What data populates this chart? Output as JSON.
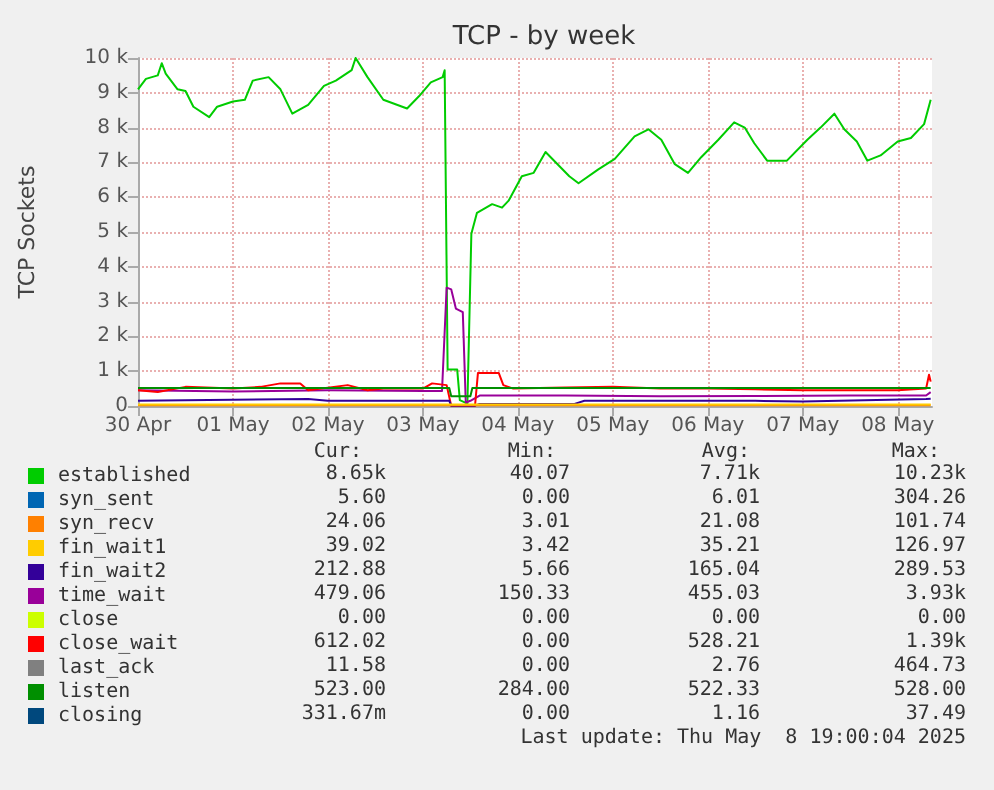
{
  "chart_data": {
    "type": "line",
    "title": "TCP - by week",
    "ylabel": "TCP Sockets",
    "legend": "bottom",
    "grid": true,
    "marker": "none",
    "line_style": "solid",
    "xlim": [
      "2025-04-30T00:00",
      "2025-05-08T08:40"
    ],
    "xticks": [
      {
        "value": "2025-04-30T00:00",
        "label": "30 Apr"
      },
      {
        "value": "2025-05-01T00:00",
        "label": "01 May"
      },
      {
        "value": "2025-05-02T00:00",
        "label": "02 May"
      },
      {
        "value": "2025-05-03T00:00",
        "label": "03 May"
      },
      {
        "value": "2025-05-04T00:00",
        "label": "04 May"
      },
      {
        "value": "2025-05-05T00:00",
        "label": "05 May"
      },
      {
        "value": "2025-05-06T00:00",
        "label": "06 May"
      },
      {
        "value": "2025-05-07T00:00",
        "label": "07 May"
      },
      {
        "value": "2025-05-08T00:00",
        "label": "08 May"
      }
    ],
    "ylim": [
      0,
      10000
    ],
    "yticks": [
      0,
      {
        "value": 1000,
        "label": "1 k"
      },
      {
        "value": 2000,
        "label": "2 k"
      },
      {
        "value": 3000,
        "label": "3 k"
      },
      {
        "value": 4000,
        "label": "4 k"
      },
      {
        "value": 5000,
        "label": "5 k"
      },
      {
        "value": 6000,
        "label": "6 k"
      },
      {
        "value": 7000,
        "label": "7 k"
      },
      {
        "value": 8000,
        "label": "8 k"
      },
      {
        "value": 9000,
        "label": "9 k"
      },
      {
        "value": 10000,
        "label": "10 k"
      }
    ],
    "series": [
      {
        "name": "established",
        "color": "#00cc00",
        "x": [
          "2025-04-30T00:00",
          "2025-04-30T02:00",
          "2025-04-30T05:00",
          "2025-04-30T06:00",
          "2025-04-30T07:00",
          "2025-04-30T10:00",
          "2025-04-30T12:00",
          "2025-04-30T14:00",
          "2025-04-30T18:00",
          "2025-04-30T20:00",
          "2025-05-01T00:00",
          "2025-05-01T03:00",
          "2025-05-01T05:00",
          "2025-05-01T09:00",
          "2025-05-01T12:00",
          "2025-05-01T15:00",
          "2025-05-01T19:00",
          "2025-05-01T23:00",
          "2025-05-02T02:00",
          "2025-05-02T06:00",
          "2025-05-02T07:00",
          "2025-05-02T10:00",
          "2025-05-02T14:00",
          "2025-05-02T20:00",
          "2025-05-02T23:00",
          "2025-05-03T02:00",
          "2025-05-03T05:00",
          "2025-05-03T05:30",
          "2025-05-03T06:15",
          "2025-05-03T08:40",
          "2025-05-03T09:20",
          "2025-05-03T11:15",
          "2025-05-03T12:15",
          "2025-05-03T13:40",
          "2025-05-03T17:30",
          "2025-05-03T20:00",
          "2025-05-03T21:40",
          "2025-05-04T01:00",
          "2025-05-04T04:00",
          "2025-05-04T07:00",
          "2025-05-04T13:00",
          "2025-05-04T15:20",
          "2025-05-04T20:20",
          "2025-05-05T00:30",
          "2025-05-05T05:30",
          "2025-05-05T09:00",
          "2025-05-05T12:15",
          "2025-05-05T15:40",
          "2025-05-05T19:00",
          "2025-05-05T22:20",
          "2025-05-06T02:40",
          "2025-05-06T06:40",
          "2025-05-06T09:20",
          "2025-05-06T11:45",
          "2025-05-06T15:00",
          "2025-05-06T20:00",
          "2025-05-07T01:10",
          "2025-05-07T04:30",
          "2025-05-07T08:00",
          "2025-05-07T10:30",
          "2025-05-07T13:40",
          "2025-05-07T16:20",
          "2025-05-07T19:40",
          "2025-05-08T00:00",
          "2025-05-08T03:20",
          "2025-05-08T06:40",
          "2025-05-08T08:20"
        ],
        "values": [
          9100,
          9400,
          9500,
          9850,
          9550,
          9100,
          9050,
          8600,
          8300,
          8600,
          8750,
          8800,
          9350,
          9450,
          9100,
          8400,
          8650,
          9200,
          9350,
          9650,
          10000,
          9450,
          8800,
          8550,
          8900,
          9300,
          9450,
          9650,
          1050,
          1050,
          170,
          70,
          4950,
          5550,
          5800,
          5700,
          5900,
          6600,
          6700,
          7300,
          6600,
          6400,
          6800,
          7100,
          7750,
          7950,
          7650,
          6950,
          6700,
          7150,
          7650,
          8150,
          8000,
          7550,
          7050,
          7050,
          7650,
          8000,
          8400,
          7950,
          7600,
          7050,
          7200,
          7600,
          7700,
          8100,
          8800
        ]
      },
      {
        "name": "syn_sent",
        "color": "#0066b3"
      },
      {
        "name": "syn_recv",
        "color": "#ff8000",
        "x": [
          "2025-04-30T00:00",
          "2025-05-08T08:20"
        ],
        "values": [
          20,
          20
        ]
      },
      {
        "name": "fin_wait1",
        "color": "#ffcc00",
        "x": [
          "2025-04-30T00:00",
          "2025-05-08T08:20"
        ],
        "values": [
          40,
          40
        ]
      },
      {
        "name": "fin_wait2",
        "color": "#330099",
        "x": [
          "2025-04-30T00:00",
          "2025-05-01T19:00",
          "2025-05-02T00:00",
          "2025-05-03T06:40",
          "2025-05-03T07:10",
          "2025-05-03T13:10",
          "2025-05-03T14:20",
          "2025-05-04T14:20",
          "2025-05-04T16:50",
          "2025-05-06T12:00",
          "2025-05-07T00:00",
          "2025-05-08T07:10",
          "2025-05-08T08:20"
        ],
        "values": [
          150,
          200,
          150,
          150,
          10,
          10,
          60,
          60,
          150,
          150,
          130,
          200,
          210
        ]
      },
      {
        "name": "time_wait",
        "color": "#990099",
        "x": [
          "2025-04-30T00:00",
          "2025-05-01T00:00",
          "2025-05-02T00:00",
          "2025-05-03T00:00",
          "2025-05-03T04:50",
          "2025-05-03T06:00",
          "2025-05-03T07:10",
          "2025-05-03T08:20",
          "2025-05-03T10:05",
          "2025-05-03T10:50",
          "2025-05-03T12:00",
          "2025-05-03T14:20",
          "2025-05-04T12:00",
          "2025-05-05T12:00",
          "2025-05-06T12:00",
          "2025-05-07T12:00",
          "2025-05-08T07:10",
          "2025-05-08T08:20"
        ],
        "values": [
          450,
          420,
          450,
          430,
          430,
          3400,
          3350,
          2800,
          2700,
          100,
          150,
          300,
          300,
          280,
          290,
          300,
          300,
          400
        ]
      },
      {
        "name": "close",
        "color": "#ccff00"
      },
      {
        "name": "close_wait",
        "color": "#ff0000",
        "x": [
          "2025-04-30T00:00",
          "2025-04-30T05:00",
          "2025-04-30T12:00",
          "2025-05-01T00:00",
          "2025-05-01T07:00",
          "2025-05-01T12:00",
          "2025-05-01T17:00",
          "2025-05-01T19:00",
          "2025-05-02T05:00",
          "2025-05-02T10:00",
          "2025-05-02T14:00",
          "2025-05-03T00:00",
          "2025-05-03T02:20",
          "2025-05-03T06:00",
          "2025-05-03T07:10",
          "2025-05-03T13:10",
          "2025-05-03T13:55",
          "2025-05-03T19:10",
          "2025-05-03T20:20",
          "2025-05-03T22:50",
          "2025-05-04T12:00",
          "2025-05-05T00:00",
          "2025-05-05T12:00",
          "2025-05-06T00:00",
          "2025-05-06T12:00",
          "2025-05-07T00:00",
          "2025-05-07T12:00",
          "2025-05-08T00:00",
          "2025-05-08T07:10",
          "2025-05-08T07:55",
          "2025-05-08T08:20"
        ],
        "values": [
          450,
          400,
          550,
          500,
          550,
          650,
          650,
          450,
          600,
          450,
          500,
          500,
          650,
          600,
          0,
          0,
          950,
          950,
          600,
          500,
          530,
          550,
          500,
          500,
          480,
          450,
          450,
          450,
          500,
          900,
          700
        ]
      },
      {
        "name": "last_ack",
        "color": "#808080"
      },
      {
        "name": "listen",
        "color": "#008f00",
        "x": [
          "2025-04-30T00:00",
          "2025-05-03T06:40",
          "2025-05-03T07:10",
          "2025-05-03T12:00",
          "2025-05-03T12:30",
          "2025-05-08T08:20"
        ],
        "values": [
          520,
          520,
          280,
          280,
          520,
          520
        ]
      },
      {
        "name": "closing",
        "color": "#00487d"
      }
    ],
    "annotations": [
      "Cur:",
      "Min:",
      "Avg:",
      "Max:",
      "8.65k",
      "40.07",
      "7.71k",
      "10.23k",
      "5.60",
      "0.00",
      "6.01",
      "304.26",
      "24.06",
      "3.01",
      "21.08",
      "101.74",
      "39.02",
      "3.42",
      "35.21",
      "126.97",
      "212.88",
      "5.66",
      "165.04",
      "289.53",
      "479.06",
      "150.33",
      "455.03",
      "3.93k",
      "0.00",
      "0.00",
      "0.00",
      "0.00",
      "612.02",
      "0.00",
      "528.21",
      "1.39k",
      "11.58",
      "0.00",
      "2.76",
      "464.73",
      "523.00",
      "284.00",
      "522.33",
      "528.00",
      "331.67m",
      "0.00",
      "1.16",
      "37.49",
      "Last update: Thu May  8 19:00:04 2025"
    ]
  }
}
